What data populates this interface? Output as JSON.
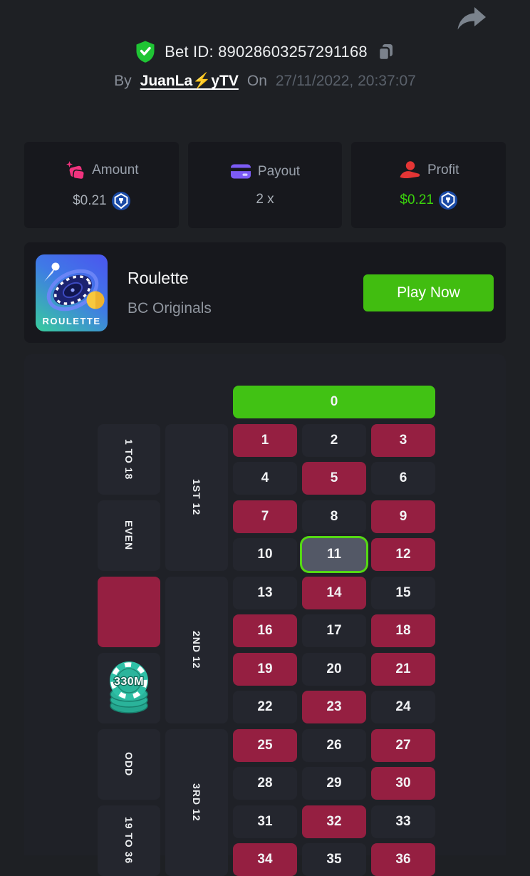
{
  "header": {
    "bet_id_label": "Bet ID:",
    "bet_id_value": "89028603257291168",
    "by_label": "By",
    "username": "JuanLa⚡yTV",
    "on_label": "On",
    "datetime": "27/11/2022, 20:37:07"
  },
  "stats": {
    "amount": {
      "label": "Amount",
      "value": "$0.21"
    },
    "payout": {
      "label": "Payout",
      "value": "2 x"
    },
    "profit": {
      "label": "Profit",
      "value": "$0.21"
    }
  },
  "game": {
    "title": "Roulette",
    "provider": "BC Originals",
    "tile_label": "ROULETTE",
    "play_button": "Play Now"
  },
  "table": {
    "zero_label": "0",
    "winning_number": 11,
    "red_numbers": [
      1,
      3,
      5,
      7,
      9,
      12,
      14,
      16,
      18,
      19,
      21,
      23,
      25,
      27,
      30,
      32,
      34,
      36
    ],
    "numbers": [
      1,
      2,
      3,
      4,
      5,
      6,
      7,
      8,
      9,
      10,
      11,
      12,
      13,
      14,
      15,
      16,
      17,
      18,
      19,
      20,
      21,
      22,
      23,
      24,
      25,
      26,
      27,
      28,
      29,
      30,
      31,
      32,
      33,
      34,
      35,
      36
    ],
    "outside_bets": [
      {
        "label": "1 TO 18",
        "kind": "text"
      },
      {
        "label": "EVEN",
        "kind": "text"
      },
      {
        "label": "",
        "kind": "red-block"
      },
      {
        "label": "",
        "kind": "black-block",
        "chip": "330M"
      },
      {
        "label": "ODD",
        "kind": "text"
      },
      {
        "label": "19 TO 36",
        "kind": "text"
      }
    ],
    "dozens": [
      "1ST 12",
      "2ND 12",
      "3RD 12"
    ],
    "chip_value": "330M"
  },
  "icons": {
    "share": "share-arrow-icon",
    "verified": "shield-check-icon",
    "copy": "copy-icon",
    "amount": "money-icon",
    "payout": "card-icon",
    "profit": "hand-coin-icon",
    "coin": "cro-coin-icon",
    "game_tile": "roulette-wheel-icon"
  },
  "colors": {
    "background": "#1e2024",
    "card": "#17181d",
    "table_card": "#1f2127",
    "cell_dark": "#24262e",
    "cell_red": "#951f41",
    "green": "#41c214",
    "profit_green": "#3bd30c",
    "highlight_border": "#55d913",
    "highlight_cell": "#535866",
    "chip_teal": "#2ec0a6",
    "coin_blue": "#1a4aa5",
    "amount_pink": "#f1337e",
    "payout_purple": "#7c5bf5",
    "profit_red": "#e43535"
  }
}
